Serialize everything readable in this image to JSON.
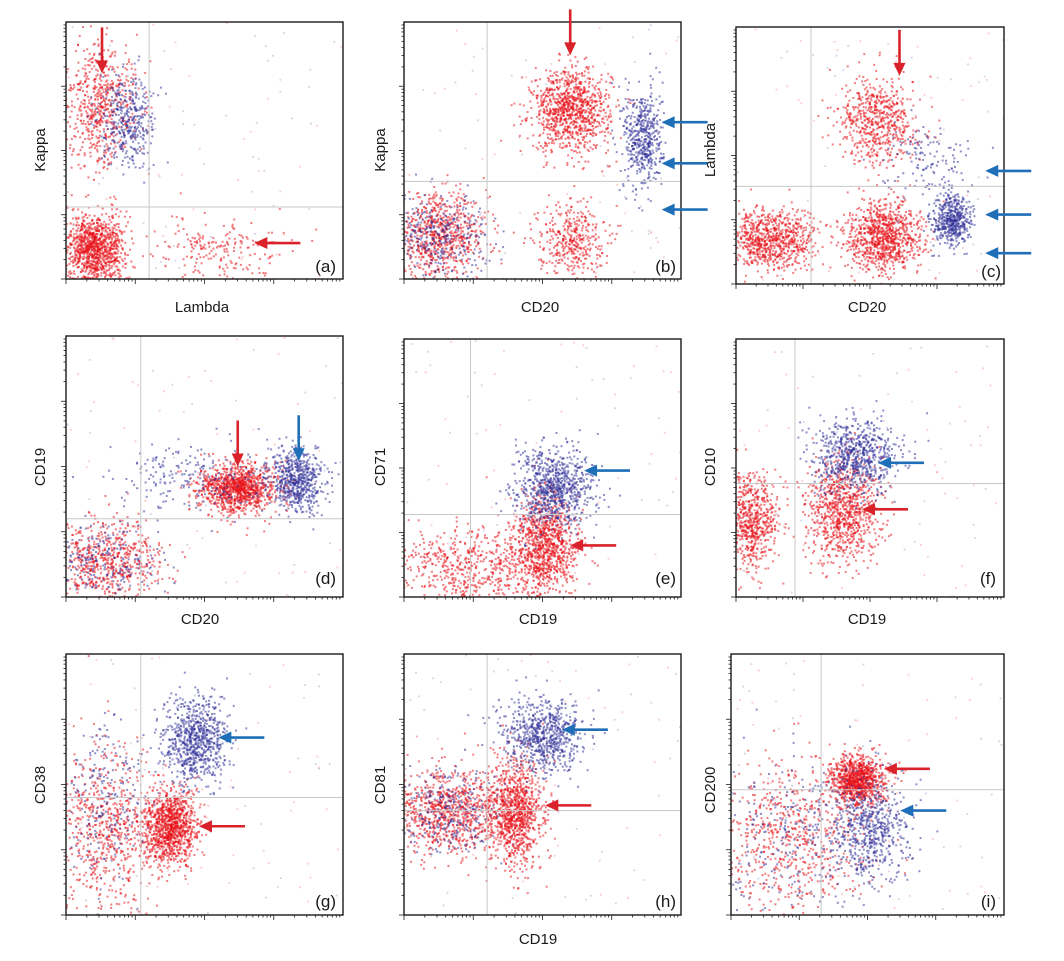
{
  "figure": {
    "background": "#ffffff"
  },
  "colors": {
    "red_population": "#e8131a",
    "blue_population": "#33339a",
    "red_arrow": "#d9222a",
    "blue_arrow": "#1f6fb8",
    "gate_line": "#c8c8c8",
    "frame": "#1a1a1a"
  },
  "chart_data": [
    {
      "type": "scatter",
      "panel": "(a)",
      "xlabel": "Lambda",
      "ylabel": "Kappa",
      "xscale": "log",
      "yscale": "log",
      "grid": false,
      "quadrant_gates": {
        "x": 0.3,
        "y": 0.28
      },
      "clusters": [
        {
          "population": "red",
          "x": 0.1,
          "y": 0.12,
          "spread_x": 0.055,
          "spread_y": 0.07,
          "relative_density": 1.0
        },
        {
          "population": "red",
          "x": 0.12,
          "y": 0.68,
          "spread_x": 0.07,
          "spread_y": 0.12,
          "relative_density": 0.55
        },
        {
          "population": "blue",
          "x": 0.22,
          "y": 0.62,
          "spread_x": 0.05,
          "spread_y": 0.09,
          "relative_density": 0.35
        },
        {
          "population": "red",
          "x": 0.55,
          "y": 0.12,
          "spread_x": 0.12,
          "spread_y": 0.06,
          "relative_density": 0.18
        }
      ],
      "arrows": [
        {
          "color": "red",
          "direction": "down",
          "target": [
            0.13,
            0.8
          ]
        },
        {
          "color": "red",
          "direction": "left",
          "target": [
            0.68,
            0.14
          ]
        }
      ]
    },
    {
      "type": "scatter",
      "panel": "(b)",
      "xlabel": "CD20",
      "ylabel": "Kappa",
      "xscale": "log",
      "yscale": "log",
      "grid": false,
      "quadrant_gates": {
        "x": 0.3,
        "y": 0.38
      },
      "clusters": [
        {
          "population": "red",
          "x": 0.12,
          "y": 0.17,
          "spread_x": 0.09,
          "spread_y": 0.08,
          "relative_density": 0.7
        },
        {
          "population": "blue",
          "x": 0.12,
          "y": 0.17,
          "spread_x": 0.09,
          "spread_y": 0.08,
          "relative_density": 0.3
        },
        {
          "population": "red",
          "x": 0.6,
          "y": 0.66,
          "spread_x": 0.07,
          "spread_y": 0.08,
          "relative_density": 0.9
        },
        {
          "population": "blue",
          "x": 0.86,
          "y": 0.55,
          "spread_x": 0.035,
          "spread_y": 0.1,
          "relative_density": 0.45
        },
        {
          "population": "red",
          "x": 0.6,
          "y": 0.16,
          "spread_x": 0.06,
          "spread_y": 0.07,
          "relative_density": 0.35
        }
      ],
      "arrows": [
        {
          "color": "red",
          "direction": "down",
          "target": [
            0.6,
            0.87
          ]
        },
        {
          "color": "blue",
          "direction": "left",
          "target": [
            0.93,
            0.61
          ]
        },
        {
          "color": "blue",
          "direction": "left",
          "target": [
            0.93,
            0.45
          ]
        },
        {
          "color": "blue",
          "direction": "left",
          "target": [
            0.93,
            0.27
          ]
        }
      ]
    },
    {
      "type": "scatter",
      "panel": "(c)",
      "xlabel": "CD20",
      "ylabel": "Lambda",
      "xscale": "log",
      "yscale": "log",
      "grid": false,
      "quadrant_gates": {
        "x": 0.28,
        "y": 0.38
      },
      "clusters": [
        {
          "population": "red",
          "x": 0.12,
          "y": 0.18,
          "spread_x": 0.09,
          "spread_y": 0.06,
          "relative_density": 0.75
        },
        {
          "population": "red",
          "x": 0.52,
          "y": 0.64,
          "spread_x": 0.07,
          "spread_y": 0.08,
          "relative_density": 0.55
        },
        {
          "population": "red",
          "x": 0.55,
          "y": 0.19,
          "spread_x": 0.07,
          "spread_y": 0.07,
          "relative_density": 0.85
        },
        {
          "population": "blue",
          "x": 0.8,
          "y": 0.25,
          "spread_x": 0.035,
          "spread_y": 0.05,
          "relative_density": 0.45
        },
        {
          "population": "blue",
          "x": 0.7,
          "y": 0.5,
          "spread_x": 0.08,
          "spread_y": 0.08,
          "relative_density": 0.12
        }
      ],
      "arrows": [
        {
          "color": "red",
          "direction": "down",
          "target": [
            0.61,
            0.81
          ]
        },
        {
          "color": "blue",
          "direction": "left",
          "target": [
            0.93,
            0.44
          ]
        },
        {
          "color": "blue",
          "direction": "left",
          "target": [
            0.93,
            0.27
          ]
        },
        {
          "color": "blue",
          "direction": "left",
          "target": [
            0.93,
            0.12
          ]
        }
      ]
    },
    {
      "type": "scatter",
      "panel": "(d)",
      "xlabel": "CD20",
      "ylabel": "CD19",
      "xscale": "log",
      "yscale": "log",
      "grid": false,
      "quadrant_gates": {
        "x": 0.27,
        "y": 0.3
      },
      "clusters": [
        {
          "population": "red",
          "x": 0.14,
          "y": 0.14,
          "spread_x": 0.1,
          "spread_y": 0.08,
          "relative_density": 0.6
        },
        {
          "population": "blue",
          "x": 0.14,
          "y": 0.14,
          "spread_x": 0.1,
          "spread_y": 0.08,
          "relative_density": 0.2
        },
        {
          "population": "red",
          "x": 0.62,
          "y": 0.42,
          "spread_x": 0.07,
          "spread_y": 0.045,
          "relative_density": 1.0
        },
        {
          "population": "blue",
          "x": 0.83,
          "y": 0.45,
          "spread_x": 0.05,
          "spread_y": 0.06,
          "relative_density": 0.55
        },
        {
          "population": "blue",
          "x": 0.45,
          "y": 0.46,
          "spread_x": 0.15,
          "spread_y": 0.07,
          "relative_density": 0.2
        }
      ],
      "arrows": [
        {
          "color": "red",
          "direction": "down",
          "target": [
            0.62,
            0.5
          ]
        },
        {
          "color": "blue",
          "direction": "down",
          "target": [
            0.84,
            0.52
          ]
        }
      ]
    },
    {
      "type": "scatter",
      "panel": "(e)",
      "xlabel": "CD19",
      "ylabel": "CD71",
      "xscale": "log",
      "yscale": "log",
      "grid": false,
      "quadrant_gates": {
        "x": 0.24,
        "y": 0.32
      },
      "clusters": [
        {
          "population": "red",
          "x": 0.24,
          "y": 0.12,
          "spread_x": 0.14,
          "spread_y": 0.08,
          "relative_density": 0.55
        },
        {
          "population": "red",
          "x": 0.5,
          "y": 0.2,
          "spread_x": 0.06,
          "spread_y": 0.1,
          "relative_density": 0.9
        },
        {
          "population": "blue",
          "x": 0.54,
          "y": 0.43,
          "spread_x": 0.07,
          "spread_y": 0.08,
          "relative_density": 0.75
        }
      ],
      "arrows": [
        {
          "color": "blue",
          "direction": "left",
          "target": [
            0.65,
            0.49
          ]
        },
        {
          "color": "red",
          "direction": "left",
          "target": [
            0.6,
            0.2
          ]
        }
      ]
    },
    {
      "type": "scatter",
      "panel": "(f)",
      "xlabel": "CD19",
      "ylabel": "CD10",
      "xscale": "log",
      "yscale": "log",
      "grid": false,
      "quadrant_gates": {
        "x": 0.22,
        "y": 0.44
      },
      "clusters": [
        {
          "population": "red",
          "x": 0.05,
          "y": 0.3,
          "spread_x": 0.05,
          "spread_y": 0.09,
          "relative_density": 0.6
        },
        {
          "population": "red",
          "x": 0.4,
          "y": 0.34,
          "spread_x": 0.07,
          "spread_y": 0.1,
          "relative_density": 0.8
        },
        {
          "population": "blue",
          "x": 0.44,
          "y": 0.55,
          "spread_x": 0.08,
          "spread_y": 0.07,
          "relative_density": 0.65
        }
      ],
      "arrows": [
        {
          "color": "blue",
          "direction": "left",
          "target": [
            0.53,
            0.52
          ]
        },
        {
          "color": "red",
          "direction": "left",
          "target": [
            0.47,
            0.34
          ]
        }
      ]
    },
    {
      "type": "scatter",
      "panel": "(g)",
      "xlabel": "",
      "ylabel": "CD38",
      "xscale": "log",
      "yscale": "log",
      "grid": false,
      "quadrant_gates": {
        "x": 0.27,
        "y": 0.45
      },
      "clusters": [
        {
          "population": "red",
          "x": 0.14,
          "y": 0.32,
          "spread_x": 0.09,
          "spread_y": 0.16,
          "relative_density": 0.6
        },
        {
          "population": "blue",
          "x": 0.14,
          "y": 0.42,
          "spread_x": 0.08,
          "spread_y": 0.15,
          "relative_density": 0.2
        },
        {
          "population": "red",
          "x": 0.37,
          "y": 0.34,
          "spread_x": 0.05,
          "spread_y": 0.07,
          "relative_density": 1.0
        },
        {
          "population": "blue",
          "x": 0.46,
          "y": 0.67,
          "spread_x": 0.06,
          "spread_y": 0.08,
          "relative_density": 0.7
        }
      ],
      "arrows": [
        {
          "color": "blue",
          "direction": "left",
          "target": [
            0.55,
            0.68
          ]
        },
        {
          "color": "red",
          "direction": "left",
          "target": [
            0.48,
            0.34
          ]
        }
      ]
    },
    {
      "type": "scatter",
      "panel": "(h)",
      "xlabel": "CD19",
      "ylabel": "CD81",
      "xscale": "log",
      "yscale": "log",
      "grid": false,
      "quadrant_gates": {
        "x": 0.3,
        "y": 0.4
      },
      "clusters": [
        {
          "population": "red",
          "x": 0.16,
          "y": 0.4,
          "spread_x": 0.1,
          "spread_y": 0.08,
          "relative_density": 0.8
        },
        {
          "population": "blue",
          "x": 0.16,
          "y": 0.4,
          "spread_x": 0.1,
          "spread_y": 0.08,
          "relative_density": 0.25
        },
        {
          "population": "red",
          "x": 0.4,
          "y": 0.4,
          "spread_x": 0.05,
          "spread_y": 0.1,
          "relative_density": 0.9
        },
        {
          "population": "blue",
          "x": 0.5,
          "y": 0.69,
          "spread_x": 0.07,
          "spread_y": 0.07,
          "relative_density": 0.65
        }
      ],
      "arrows": [
        {
          "color": "blue",
          "direction": "left",
          "target": [
            0.57,
            0.71
          ]
        },
        {
          "color": "red",
          "direction": "left",
          "target": [
            0.51,
            0.42
          ]
        }
      ]
    },
    {
      "type": "scatter",
      "panel": "(i)",
      "xlabel": "",
      "ylabel": "CD200",
      "xscale": "log",
      "yscale": "log",
      "grid": false,
      "quadrant_gates": {
        "x": 0.33,
        "y": 0.48
      },
      "clusters": [
        {
          "population": "red",
          "x": 0.22,
          "y": 0.3,
          "spread_x": 0.14,
          "spread_y": 0.15,
          "relative_density": 0.6
        },
        {
          "population": "blue",
          "x": 0.22,
          "y": 0.3,
          "spread_x": 0.14,
          "spread_y": 0.15,
          "relative_density": 0.25
        },
        {
          "population": "red",
          "x": 0.46,
          "y": 0.52,
          "spread_x": 0.05,
          "spread_y": 0.045,
          "relative_density": 0.9
        },
        {
          "population": "blue",
          "x": 0.5,
          "y": 0.33,
          "spread_x": 0.07,
          "spread_y": 0.1,
          "relative_density": 0.55
        }
      ],
      "arrows": [
        {
          "color": "red",
          "direction": "left",
          "target": [
            0.56,
            0.56
          ]
        },
        {
          "color": "blue",
          "direction": "left",
          "target": [
            0.62,
            0.4
          ]
        }
      ]
    }
  ],
  "shared_xlabel": "CD19"
}
